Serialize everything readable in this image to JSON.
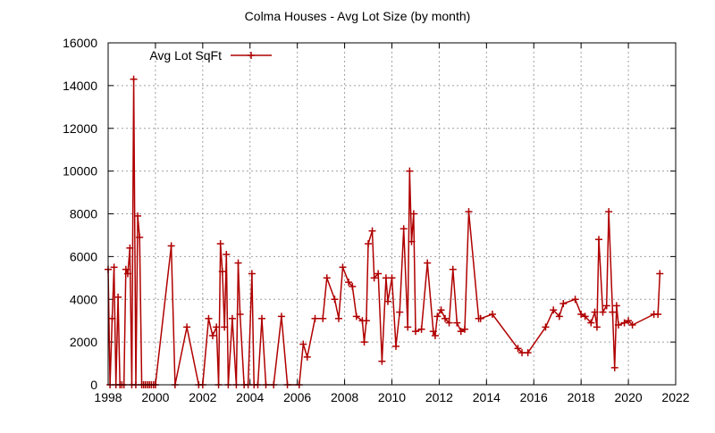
{
  "chart_data": {
    "type": "line",
    "title": "Colma Houses - Avg Lot Size (by month)",
    "xlabel": "",
    "ylabel": "",
    "xlim": [
      1998,
      2022
    ],
    "ylim": [
      0,
      16000
    ],
    "x_ticks": [
      1998,
      2000,
      2002,
      2004,
      2006,
      2008,
      2010,
      2012,
      2014,
      2016,
      2018,
      2020,
      2022
    ],
    "y_ticks": [
      0,
      2000,
      4000,
      6000,
      8000,
      10000,
      12000,
      14000,
      16000
    ],
    "grid": true,
    "legend_position": "top-left",
    "series": [
      {
        "name": "Avg Lot SqFt",
        "color": "#b00000",
        "marker": "plus",
        "x": [
          1998.0,
          1998.08,
          1998.17,
          1998.25,
          1998.33,
          1998.42,
          1998.5,
          1998.58,
          1998.67,
          1998.75,
          1998.83,
          1998.92,
          1999.0,
          1999.08,
          1999.17,
          1999.25,
          1999.33,
          1999.42,
          1999.5,
          1999.58,
          1999.67,
          1999.75,
          1999.83,
          1999.92,
          2000.0,
          2000.67,
          2000.83,
          2001.33,
          2001.83,
          2002.0,
          2002.25,
          2002.42,
          2002.58,
          2002.67,
          2002.75,
          2002.83,
          2002.92,
          2003.0,
          2003.08,
          2003.25,
          2003.42,
          2003.5,
          2003.58,
          2003.75,
          2003.92,
          2004.08,
          2004.17,
          2004.33,
          2004.5,
          2004.67,
          2005.0,
          2005.33,
          2005.58,
          2006.08,
          2006.25,
          2006.42,
          2006.75,
          2007.08,
          2007.25,
          2007.58,
          2007.75,
          2007.92,
          2008.17,
          2008.33,
          2008.5,
          2008.75,
          2008.83,
          2008.92,
          2009.0,
          2009.17,
          2009.25,
          2009.42,
          2009.58,
          2009.75,
          2009.83,
          2010.0,
          2010.17,
          2010.33,
          2010.5,
          2010.67,
          2010.75,
          2010.83,
          2010.92,
          2011.0,
          2011.25,
          2011.5,
          2011.75,
          2011.83,
          2011.92,
          2012.08,
          2012.25,
          2012.42,
          2012.58,
          2012.75,
          2012.92,
          2013.08,
          2013.25,
          2013.67,
          2013.75,
          2014.25,
          2015.33,
          2015.5,
          2015.75,
          2016.5,
          2016.83,
          2017.08,
          2017.25,
          2017.75,
          2018.0,
          2018.17,
          2018.42,
          2018.58,
          2018.67,
          2018.75,
          2018.92,
          2019.08,
          2019.17,
          2019.33,
          2019.42,
          2019.5,
          2019.58,
          2019.83,
          2020.0,
          2020.17,
          2021.08,
          2021.25,
          2021.33
        ],
        "y": [
          5400,
          0,
          3100,
          5500,
          0,
          4100,
          0,
          0,
          0,
          5400,
          5200,
          6400,
          0,
          14300,
          0,
          7900,
          6900,
          0,
          0,
          0,
          0,
          0,
          0,
          0,
          0,
          6500,
          0,
          2700,
          0,
          0,
          3100,
          2300,
          2700,
          0,
          6600,
          5300,
          2700,
          6100,
          0,
          3100,
          0,
          5700,
          3300,
          0,
          0,
          5200,
          0,
          0,
          3100,
          0,
          0,
          3200,
          0,
          0,
          1900,
          1300,
          3100,
          3100,
          5000,
          4000,
          3100,
          5500,
          4800,
          4600,
          3200,
          3000,
          2000,
          3000,
          6600,
          7200,
          5000,
          5200,
          1100,
          5000,
          3900,
          5000,
          1800,
          3400,
          7300,
          2700,
          10000,
          6700,
          8000,
          2500,
          2600,
          5700,
          2500,
          2300,
          3200,
          3500,
          3100,
          2900,
          5400,
          2900,
          2500,
          2600,
          8100,
          3100,
          3100,
          3300,
          1700,
          1500,
          1500,
          2700,
          3500,
          3200,
          3800,
          4000,
          3300,
          3200,
          2900,
          3400,
          2700,
          6800,
          3400,
          3700,
          8100,
          3400,
          800,
          3700,
          2800,
          2900,
          3000,
          2800,
          3300,
          3300,
          5200
        ]
      }
    ]
  }
}
